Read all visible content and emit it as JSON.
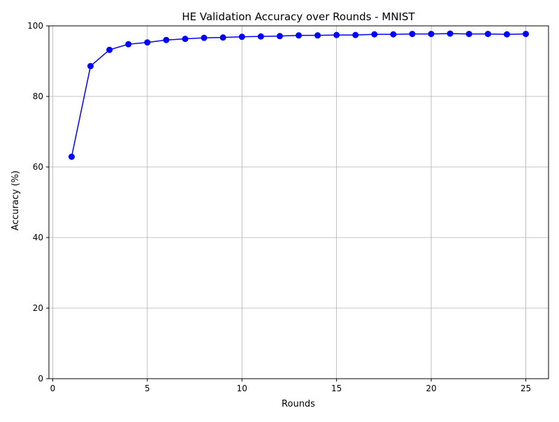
{
  "chart_data": {
    "type": "line",
    "title": "HE Validation Accuracy over Rounds - MNIST",
    "xlabel": "Rounds",
    "ylabel": "Accuracy (%)",
    "xlim": [
      -0.2,
      26.2
    ],
    "ylim": [
      0,
      100
    ],
    "x_ticks": [
      0,
      5,
      10,
      15,
      20,
      25
    ],
    "y_ticks": [
      0,
      20,
      40,
      60,
      80,
      100
    ],
    "grid": true,
    "legend": "none",
    "series": [
      {
        "color": "#0000ff",
        "marker": "circle",
        "x": [
          1,
          2,
          3,
          4,
          5,
          6,
          7,
          8,
          9,
          10,
          11,
          12,
          13,
          14,
          15,
          16,
          17,
          18,
          19,
          20,
          21,
          22,
          23,
          24,
          25
        ],
        "y": [
          62.9,
          88.6,
          93.2,
          94.8,
          95.3,
          96.0,
          96.3,
          96.6,
          96.7,
          96.9,
          97.0,
          97.1,
          97.3,
          97.3,
          97.4,
          97.4,
          97.6,
          97.6,
          97.7,
          97.7,
          97.8,
          97.7,
          97.7,
          97.6,
          97.7
        ]
      }
    ]
  },
  "colors": {
    "grid": "#b0b0b0",
    "axes": "#000000",
    "background": "#ffffff"
  }
}
